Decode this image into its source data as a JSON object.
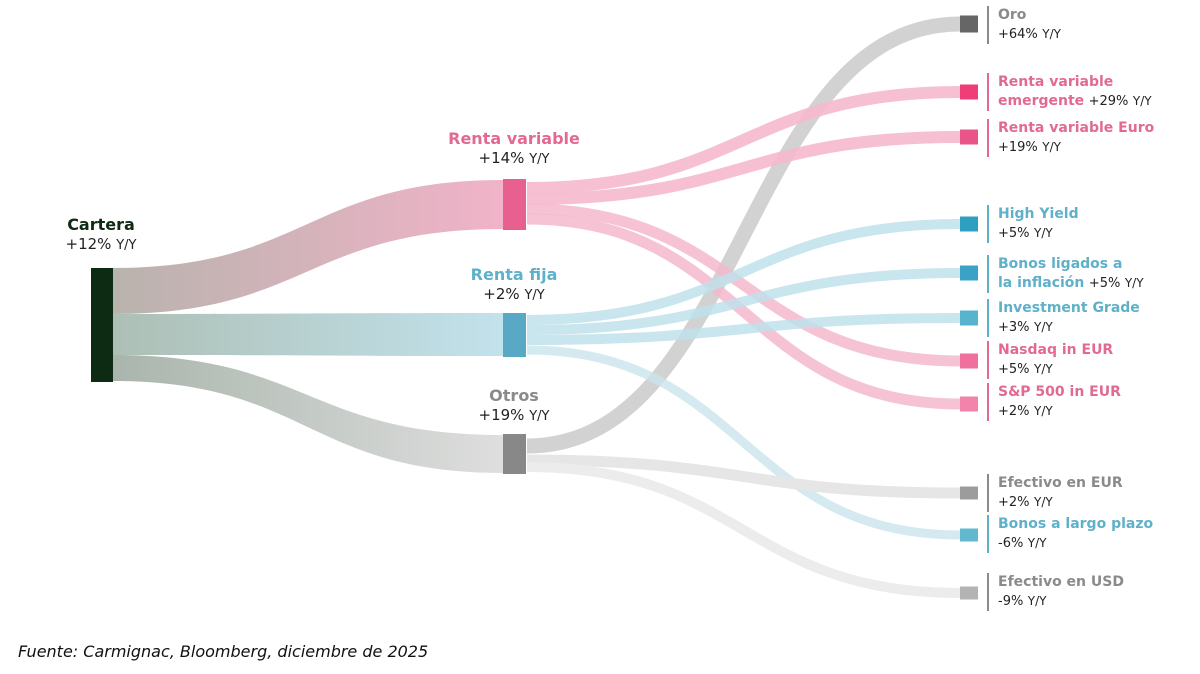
{
  "unit_suffix": "Y/Y",
  "colors": {
    "cartera": "#0d2a12",
    "renta_variable": "#e8608f",
    "renta_fija": "#5aa9c4",
    "otros": "#888888",
    "pink_text": "#e26a92",
    "blue_text": "#5fb0c9",
    "grey_text": "#8a8a8a"
  },
  "nodes": {
    "cartera": {
      "name": "Cartera",
      "value": "+12%"
    },
    "renta_variable": {
      "name": "Renta variable",
      "value": "+14%"
    },
    "renta_fija": {
      "name": "Renta fija",
      "value": "+2%"
    },
    "otros": {
      "name": "Otros",
      "value": "+19%"
    }
  },
  "leaves": [
    {
      "name": "Oro",
      "value": "+64%",
      "group": "otros",
      "color": "#666666"
    },
    {
      "name_line1": "Renta variable",
      "name_line2": "emergente",
      "value": "+29%",
      "group": "renta_variable",
      "color": "#ef3d78"
    },
    {
      "name": "Renta variable Euro",
      "value": "+19%",
      "group": "renta_variable",
      "color": "#ea5589"
    },
    {
      "name": "High Yield",
      "value": "+5%",
      "group": "renta_fija",
      "color": "#2f9fc0"
    },
    {
      "name_line1": "Bonos ligados a",
      "name_line2": "la inflación",
      "value": "+5%",
      "group": "renta_fija",
      "color": "#3aa2c4"
    },
    {
      "name": "Investment Grade",
      "value": "+3%",
      "group": "renta_fija",
      "color": "#58b3cf"
    },
    {
      "name": "Nasdaq in EUR",
      "value": "+5%",
      "group": "renta_variable",
      "color": "#f06f9c"
    },
    {
      "name": "S&P 500 in EUR",
      "value": "+2%",
      "group": "renta_variable",
      "color": "#f283aa"
    },
    {
      "name": "Efectivo en EUR",
      "value": "+2%",
      "group": "otros",
      "color": "#9c9c9c"
    },
    {
      "name": "Bonos a largo plazo",
      "value": "-6%",
      "group": "renta_fija",
      "color": "#62b8cf"
    },
    {
      "name": "Efectivo en USD",
      "value": "-9%",
      "group": "otros",
      "color": "#b3b3b3"
    }
  ],
  "source": "Fuente: Carmignac, Bloomberg, diciembre de 2025"
}
